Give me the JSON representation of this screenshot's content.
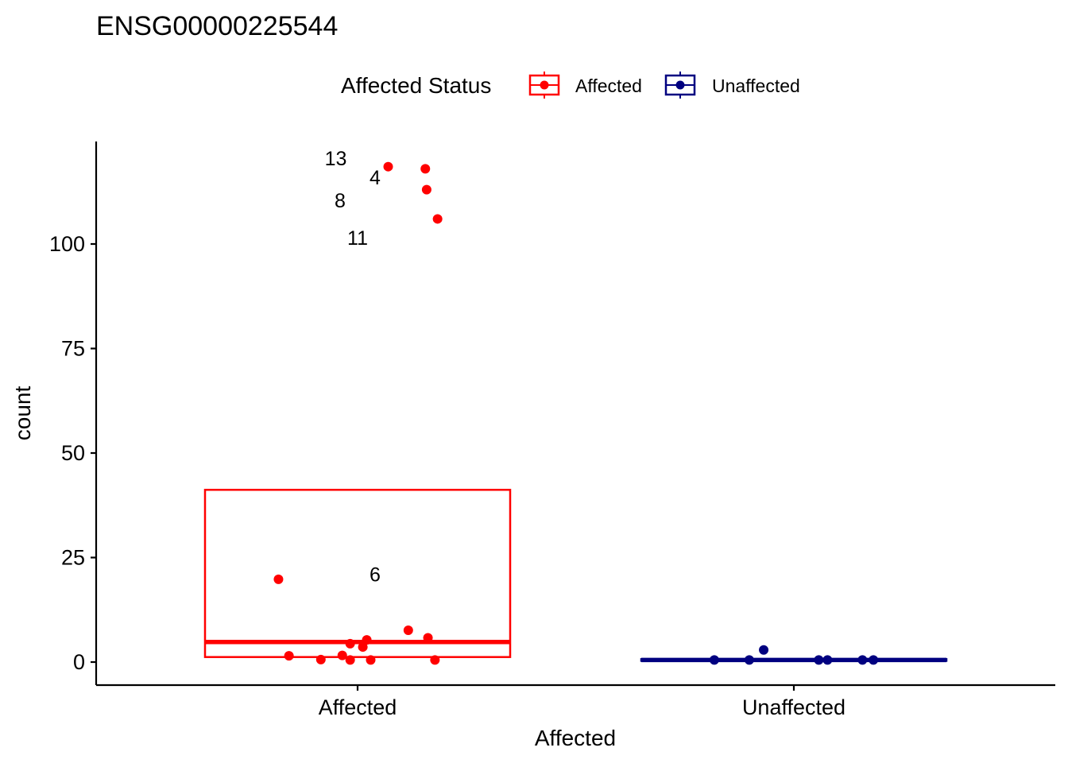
{
  "chart_data": {
    "type": "boxplot",
    "title": "ENSG00000225544",
    "xlabel": "Affected",
    "ylabel": "count",
    "ylim": [
      -5,
      125
    ],
    "yticks": [
      0,
      25,
      50,
      75,
      100
    ],
    "categories": [
      "Affected",
      "Unaffected"
    ],
    "grid": false,
    "legend": {
      "title": "Affected Status",
      "position": "top",
      "entries": [
        {
          "label": "Affected",
          "color": "#FF0000"
        },
        {
          "label": "Unaffected",
          "color": "#000080"
        }
      ]
    },
    "boxes": [
      {
        "category": "Affected",
        "color": "#FF0000",
        "q1": 1.2,
        "median": 4.8,
        "q3": 41.2
      },
      {
        "category": "Unaffected",
        "color": "#000080",
        "q1": 0.3,
        "median": 0.5,
        "q3": 0.7
      }
    ],
    "series": [
      {
        "name": "Affected",
        "category": "Affected",
        "color": "#FF0000",
        "points": [
          {
            "jitter": 0.07,
            "y": 118.5
          },
          {
            "jitter": 0.155,
            "y": 118.0
          },
          {
            "jitter": 0.158,
            "y": 113.0
          },
          {
            "jitter": 0.183,
            "y": 106.0
          },
          {
            "jitter": -0.181,
            "y": 19.8
          },
          {
            "jitter": 0.116,
            "y": 7.6
          },
          {
            "jitter": 0.161,
            "y": 5.8
          },
          {
            "jitter": 0.021,
            "y": 5.3
          },
          {
            "jitter": -0.017,
            "y": 4.4
          },
          {
            "jitter": 0.012,
            "y": 3.6
          },
          {
            "jitter": -0.157,
            "y": 1.5
          },
          {
            "jitter": -0.035,
            "y": 1.6
          },
          {
            "jitter": -0.084,
            "y": 0.6
          },
          {
            "jitter": -0.017,
            "y": 0.5
          },
          {
            "jitter": 0.03,
            "y": 0.5
          },
          {
            "jitter": 0.177,
            "y": 0.5
          }
        ],
        "labels": [
          {
            "text": "13",
            "jitter": -0.05,
            "y": 120.5
          },
          {
            "text": "4",
            "jitter": 0.04,
            "y": 116.0
          },
          {
            "text": "8",
            "jitter": -0.04,
            "y": 110.5
          },
          {
            "text": "11",
            "jitter": 0.0,
            "y": 101.5
          },
          {
            "text": "6",
            "jitter": 0.04,
            "y": 21.0
          }
        ]
      },
      {
        "name": "Unaffected",
        "category": "Unaffected",
        "color": "#000080",
        "points": [
          {
            "jitter": -0.182,
            "y": 0.5
          },
          {
            "jitter": -0.102,
            "y": 0.5
          },
          {
            "jitter": -0.069,
            "y": 2.9
          },
          {
            "jitter": 0.057,
            "y": 0.5
          },
          {
            "jitter": 0.077,
            "y": 0.5
          },
          {
            "jitter": 0.157,
            "y": 0.5
          },
          {
            "jitter": 0.182,
            "y": 0.5
          }
        ]
      }
    ]
  }
}
